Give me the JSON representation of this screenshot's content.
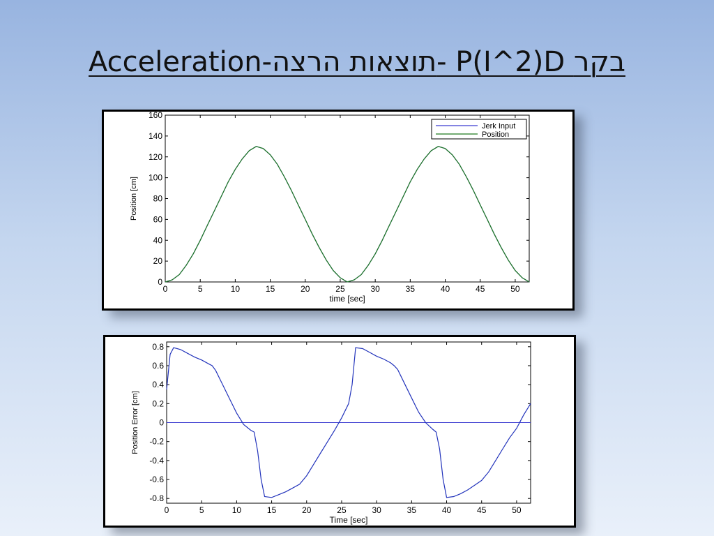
{
  "slide": {
    "title": "Acceleration-תוצאות הרצה- P(I^2)D בקר"
  },
  "chart_data": [
    {
      "type": "line",
      "title": "",
      "xlabel": "time [sec]",
      "ylabel": "Position [cm]",
      "xlim": [
        0,
        52
      ],
      "ylim": [
        0,
        160
      ],
      "xticks": [
        0,
        5,
        10,
        15,
        20,
        25,
        30,
        35,
        40,
        45,
        50
      ],
      "yticks": [
        0,
        20,
        40,
        60,
        80,
        100,
        120,
        140,
        160
      ],
      "grid": false,
      "legend": "top-right",
      "series": [
        {
          "name": "Jerk Input",
          "color": "#3b3bd0",
          "x": [
            0,
            1,
            2,
            3,
            4,
            5,
            6,
            7,
            8,
            9,
            10,
            11,
            12,
            13,
            14,
            15,
            16,
            17,
            18,
            19,
            20,
            21,
            22,
            23,
            24,
            25,
            26,
            27,
            28,
            29,
            30,
            31,
            32,
            33,
            34,
            35,
            36,
            37,
            38,
            39,
            40,
            41,
            42,
            43,
            44,
            45,
            46,
            47,
            48,
            49,
            50,
            51,
            52
          ],
          "y": [
            0,
            2,
            7,
            16,
            27,
            40,
            54,
            68,
            82,
            96,
            108,
            118,
            126,
            130,
            128,
            122,
            113,
            101,
            88,
            74,
            60,
            46,
            33,
            21,
            11,
            4,
            0,
            2,
            7,
            16,
            27,
            40,
            54,
            68,
            82,
            96,
            108,
            118,
            126,
            130,
            128,
            122,
            113,
            101,
            88,
            74,
            60,
            46,
            33,
            21,
            11,
            4,
            0
          ]
        },
        {
          "name": "Position",
          "color": "#1f7a1f",
          "x": [
            0,
            1,
            2,
            3,
            4,
            5,
            6,
            7,
            8,
            9,
            10,
            11,
            12,
            13,
            14,
            15,
            16,
            17,
            18,
            19,
            20,
            21,
            22,
            23,
            24,
            25,
            26,
            27,
            28,
            29,
            30,
            31,
            32,
            33,
            34,
            35,
            36,
            37,
            38,
            39,
            40,
            41,
            42,
            43,
            44,
            45,
            46,
            47,
            48,
            49,
            50,
            51,
            52
          ],
          "y": [
            0,
            2,
            7,
            16,
            27,
            40,
            54,
            68,
            82,
            96,
            108,
            118,
            126,
            130,
            128,
            122,
            113,
            101,
            88,
            74,
            60,
            46,
            33,
            21,
            11,
            4,
            0,
            2,
            7,
            16,
            27,
            40,
            54,
            68,
            82,
            96,
            108,
            118,
            126,
            130,
            128,
            122,
            113,
            101,
            88,
            74,
            60,
            46,
            33,
            21,
            11,
            4,
            0
          ]
        }
      ]
    },
    {
      "type": "line",
      "title": "",
      "xlabel": "Time [sec]",
      "ylabel": "Position Error [cm]",
      "xlim": [
        0,
        52
      ],
      "ylim": [
        -0.85,
        0.85
      ],
      "xticks": [
        0,
        5,
        10,
        15,
        20,
        25,
        30,
        35,
        40,
        45,
        50
      ],
      "yticks": [
        -0.8,
        -0.6,
        -0.4,
        -0.2,
        0,
        0.2,
        0.4,
        0.6,
        0.8
      ],
      "grid": false,
      "reference_line": {
        "y": 0,
        "color": "#3b3bd0"
      },
      "series": [
        {
          "name": "",
          "color": "#2233bb",
          "x": [
            0,
            0.5,
            1,
            2,
            3,
            4,
            5,
            6,
            6.5,
            7,
            8,
            9,
            10,
            11,
            12,
            12.5,
            13,
            13.5,
            14,
            15,
            16,
            17,
            18,
            19,
            20,
            21,
            22,
            23,
            24,
            25,
            26,
            26.5,
            27,
            28,
            29,
            30,
            31,
            32,
            32.5,
            33,
            34,
            35,
            36,
            37,
            38,
            38.5,
            39,
            39.5,
            40,
            41,
            42,
            43,
            44,
            45,
            46,
            47,
            48,
            49,
            50,
            51,
            52
          ],
          "y": [
            0.35,
            0.72,
            0.79,
            0.77,
            0.73,
            0.69,
            0.66,
            0.62,
            0.6,
            0.55,
            0.4,
            0.25,
            0.1,
            -0.02,
            -0.08,
            -0.1,
            -0.3,
            -0.6,
            -0.78,
            -0.79,
            -0.76,
            -0.73,
            -0.69,
            -0.65,
            -0.56,
            -0.44,
            -0.32,
            -0.2,
            -0.08,
            0.05,
            0.2,
            0.4,
            0.79,
            0.78,
            0.74,
            0.7,
            0.67,
            0.63,
            0.6,
            0.56,
            0.41,
            0.26,
            0.11,
            0.0,
            -0.07,
            -0.1,
            -0.28,
            -0.6,
            -0.79,
            -0.78,
            -0.75,
            -0.71,
            -0.66,
            -0.61,
            -0.52,
            -0.4,
            -0.28,
            -0.16,
            -0.06,
            0.08,
            0.2
          ]
        }
      ]
    }
  ]
}
